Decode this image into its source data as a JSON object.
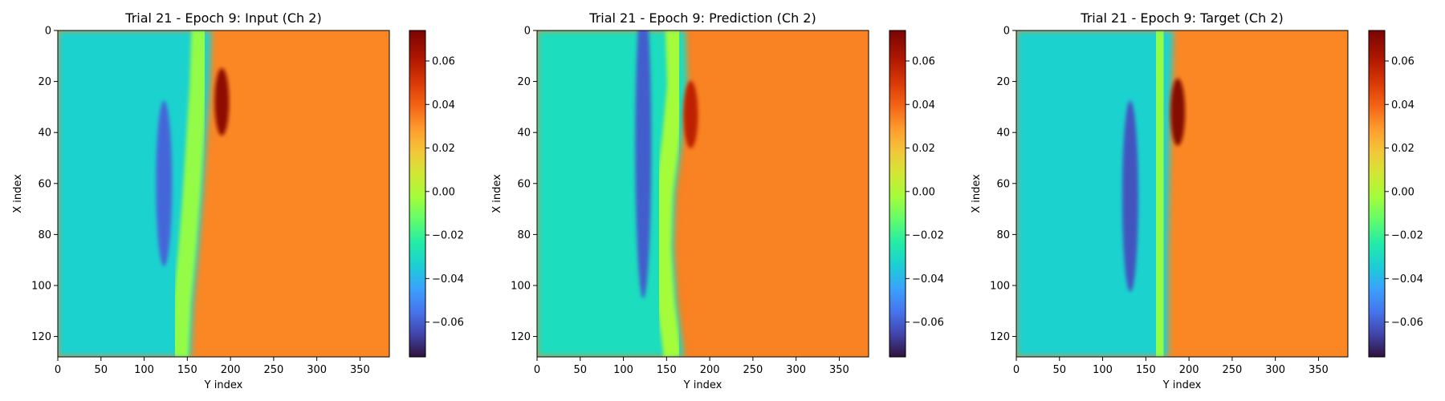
{
  "chart_data": [
    {
      "type": "heatmap",
      "title": "Trial 21 - Epoch 9: Input (Ch 2)",
      "xlabel": "Y index",
      "ylabel": "X index",
      "xlim": [
        0,
        384
      ],
      "ylim": [
        128,
        0
      ],
      "xticks": [
        "0",
        "50",
        "100",
        "150",
        "200",
        "250",
        "300",
        "350"
      ],
      "yticks": [
        "0",
        "20",
        "40",
        "60",
        "80",
        "100",
        "120"
      ],
      "colorbar": {
        "min": -0.076,
        "max": 0.074,
        "ticks": [
          "0.06",
          "0.04",
          "0.02",
          "0.00",
          "−0.02",
          "−0.04",
          "−0.06"
        ],
        "colormap": "turbo"
      },
      "field": {
        "left_value": -0.032,
        "right_value": 0.035,
        "front_x": [
          178,
          176,
          172,
          168,
          163,
          157,
          154
        ],
        "dark_band": {
          "center_y": 60,
          "extent_y": [
            30,
            95
          ],
          "value": -0.058
        },
        "hot_spot": {
          "x": 28,
          "y": 190,
          "value": 0.07
        }
      }
    },
    {
      "type": "heatmap",
      "title": "Trial 21 - Epoch 9: Prediction (Ch 2)",
      "xlabel": "Y index",
      "ylabel": "X index",
      "xlim": [
        0,
        384
      ],
      "ylim": [
        128,
        0
      ],
      "xticks": [
        "0",
        "50",
        "100",
        "150",
        "200",
        "250",
        "300",
        "350"
      ],
      "yticks": [
        "0",
        "20",
        "40",
        "60",
        "80",
        "100",
        "120"
      ],
      "colorbar": {
        "min": -0.076,
        "max": 0.074,
        "ticks": [
          "0.06",
          "0.04",
          "0.02",
          "0.00",
          "−0.02",
          "−0.04",
          "−0.06"
        ],
        "colormap": "turbo"
      },
      "field": {
        "left_value": -0.028,
        "right_value": 0.036,
        "front_x": [
          172,
          174,
          168,
          160,
          158,
          162,
          170
        ],
        "dark_band": {
          "center_y": 45,
          "extent_y": [
            5,
            125
          ],
          "value": -0.06
        },
        "hot_spot": {
          "x": 33,
          "y": 178,
          "value": 0.06
        }
      }
    },
    {
      "type": "heatmap",
      "title": "Trial 21 - Epoch 9: Target (Ch 2)",
      "xlabel": "Y index",
      "ylabel": "X index",
      "xlim": [
        0,
        384
      ],
      "ylim": [
        128,
        0
      ],
      "xticks": [
        "0",
        "50",
        "100",
        "150",
        "200",
        "250",
        "300",
        "350"
      ],
      "yticks": [
        "0",
        "20",
        "40",
        "60",
        "80",
        "100",
        "120"
      ],
      "colorbar": {
        "min": -0.076,
        "max": 0.074,
        "ticks": [
          "0.06",
          "0.04",
          "0.02",
          "0.00",
          "−0.02",
          "−0.04",
          "−0.06"
        ],
        "colormap": "turbo"
      },
      "field": {
        "left_value": -0.032,
        "right_value": 0.035,
        "front_x": [
          182,
          180,
          178,
          177,
          176,
          176,
          176
        ],
        "dark_band": {
          "center_y": 65,
          "extent_y": [
            25,
            100
          ],
          "value": -0.062
        },
        "hot_spot": {
          "x": 32,
          "y": 187,
          "value": 0.072
        }
      }
    }
  ]
}
